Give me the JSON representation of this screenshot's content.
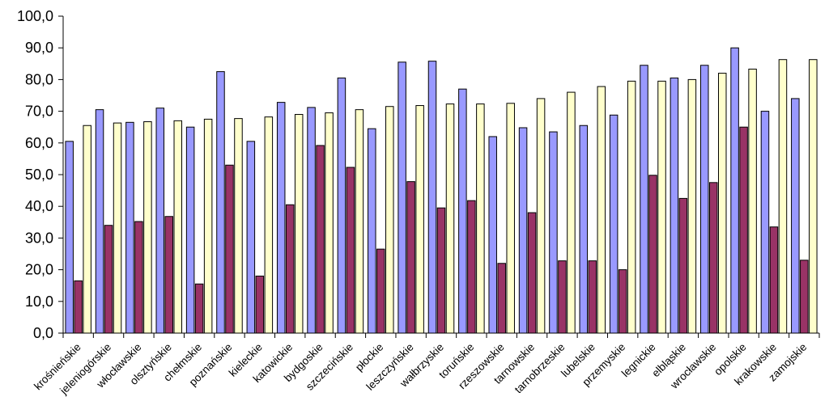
{
  "chart_data": {
    "type": "bar",
    "title": "",
    "xlabel": "",
    "ylabel": "",
    "ylim": [
      0,
      100
    ],
    "ytick_step": 10,
    "ytick_labels": [
      "0,0",
      "10,0",
      "20,0",
      "30,0",
      "40,0",
      "50,0",
      "60,0",
      "70,0",
      "80,0",
      "90,0",
      "100,0"
    ],
    "grid": false,
    "legend": "none",
    "categories": [
      "krośnieńskie",
      "jeleniogórskie",
      "włocławskie",
      "olsztyńskie",
      "chełmskie",
      "poznańskie",
      "kieleckie",
      "katowickie",
      "bydgoskie",
      "szczecińskie",
      "płockie",
      "leszczyńskie",
      "wałbrzyskie",
      "toruńskie",
      "rzeszowskie",
      "tarnowskie",
      "tarnobrzeskie",
      "lubelskie",
      "przemyskie",
      "legnickie",
      "elbląskie",
      "wrocławskie",
      "opolskie",
      "krakowskie",
      "zamojskie"
    ],
    "series": [
      {
        "color": "#9999ff",
        "values": [
          60.5,
          70.5,
          66.5,
          71.0,
          65.0,
          82.5,
          60.5,
          72.8,
          71.2,
          80.5,
          64.5,
          85.5,
          85.8,
          77.0,
          62.0,
          64.8,
          63.5,
          65.5,
          68.8,
          84.5,
          80.5,
          84.5,
          90.0,
          70.0,
          74.0
        ]
      },
      {
        "color": "#993366",
        "values": [
          16.5,
          34.0,
          35.2,
          36.8,
          15.5,
          53.0,
          18.0,
          40.5,
          59.2,
          52.3,
          26.5,
          47.8,
          39.5,
          41.8,
          22.0,
          38.0,
          22.8,
          22.8,
          20.0,
          49.8,
          42.5,
          47.5,
          65.0,
          33.5,
          23.0
        ]
      },
      {
        "color": "#ffffcc",
        "values": [
          65.5,
          66.3,
          66.7,
          67.0,
          67.5,
          67.7,
          68.2,
          69.0,
          69.5,
          70.5,
          71.5,
          71.8,
          72.3,
          72.3,
          72.5,
          74.0,
          76.0,
          77.8,
          79.5,
          79.5,
          80.0,
          82.0,
          83.3,
          86.3,
          86.3
        ]
      }
    ]
  }
}
